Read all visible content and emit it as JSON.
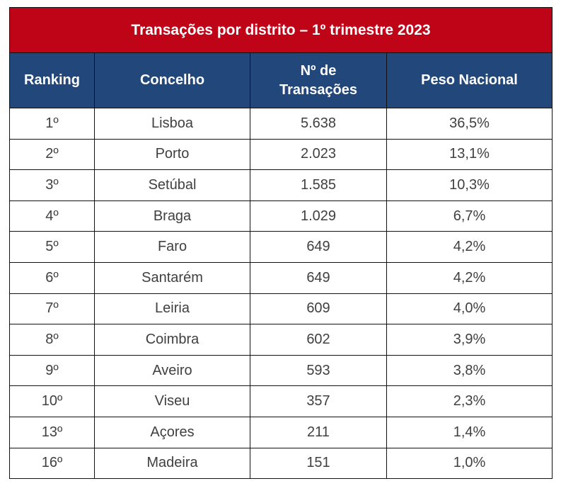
{
  "title": "Transações por distrito – 1º trimestre 2023",
  "headers": {
    "ranking": "Ranking",
    "concelho": "Concelho",
    "transacoes_line1": "Nº de",
    "transacoes_line2": "Transações",
    "peso": "Peso Nacional"
  },
  "rows": [
    {
      "ranking": "1º",
      "concelho": "Lisboa",
      "transacoes": "5.638",
      "peso": "36,5%"
    },
    {
      "ranking": "2º",
      "concelho": "Porto",
      "transacoes": "2.023",
      "peso": "13,1%"
    },
    {
      "ranking": "3º",
      "concelho": "Setúbal",
      "transacoes": "1.585",
      "peso": "10,3%"
    },
    {
      "ranking": "4º",
      "concelho": "Braga",
      "transacoes": "1.029",
      "peso": "6,7%"
    },
    {
      "ranking": "5º",
      "concelho": "Faro",
      "transacoes": "649",
      "peso": "4,2%"
    },
    {
      "ranking": "6º",
      "concelho": "Santarém",
      "transacoes": "649",
      "peso": "4,2%"
    },
    {
      "ranking": "7º",
      "concelho": "Leiria",
      "transacoes": "609",
      "peso": "4,0%"
    },
    {
      "ranking": "8º",
      "concelho": "Coimbra",
      "transacoes": "602",
      "peso": "3,9%"
    },
    {
      "ranking": "9º",
      "concelho": "Aveiro",
      "transacoes": "593",
      "peso": "3,8%"
    },
    {
      "ranking": "10º",
      "concelho": "Viseu",
      "transacoes": "357",
      "peso": "2,3%"
    },
    {
      "ranking": "13º",
      "concelho": "Açores",
      "transacoes": "211",
      "peso": "1,4%"
    },
    {
      "ranking": "16º",
      "concelho": "Madeira",
      "transacoes": "151",
      "peso": "1,0%"
    }
  ],
  "colors": {
    "title_bg": "#c00418",
    "header_bg": "#22487b",
    "text": "#404040"
  }
}
